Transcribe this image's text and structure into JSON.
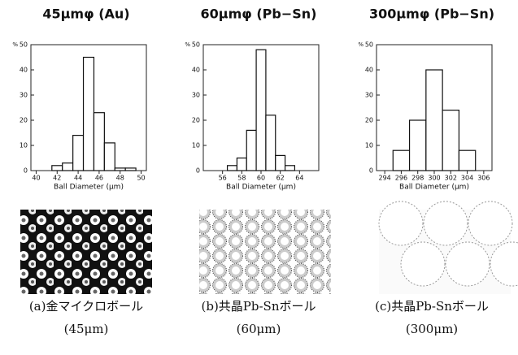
{
  "chart_data": [
    {
      "type": "histogram",
      "title": "45μmφ (Au)",
      "ylabel": "%",
      "xlabel": "Ball Diameter (μm)",
      "bins": [
        41.5,
        42.5,
        43.5,
        44.5,
        45.5,
        46.5,
        47.5,
        48.5,
        49.5
      ],
      "values": [
        2,
        3,
        14,
        45,
        23,
        11,
        1,
        1
      ],
      "xlim": [
        39.5,
        50.5
      ],
      "xticks": [
        40,
        42,
        44,
        46,
        48,
        50
      ],
      "ylim": [
        0,
        50
      ],
      "yticks": [
        0,
        10,
        20,
        30,
        40,
        50
      ],
      "color": "#ffffff",
      "caption": "(a)金マイクロボール",
      "caption_sub": "(45μm)"
    },
    {
      "type": "histogram",
      "title": "60μmφ (Pb−Sn)",
      "ylabel": "%",
      "xlabel": "Ball Diameter (μm)",
      "bins": [
        56.5,
        57.5,
        58.5,
        59.5,
        60.5,
        61.5,
        62.5,
        63.5
      ],
      "values": [
        2,
        5,
        16,
        48,
        22,
        6,
        2
      ],
      "xlim": [
        54,
        66
      ],
      "xticks": [
        56,
        58,
        60,
        62,
        64
      ],
      "ylim": [
        0,
        50
      ],
      "yticks": [
        0,
        10,
        20,
        30,
        40,
        50
      ],
      "color": "#ffffff",
      "caption": "(b)共晶Pb-Snボール",
      "caption_sub": "(60μm)"
    },
    {
      "type": "histogram",
      "title": "300μmφ (Pb−Sn)",
      "ylabel": "%",
      "xlabel": "Ball Diameter (μm)",
      "bins": [
        295,
        297,
        299,
        301,
        303,
        305
      ],
      "values": [
        8,
        20,
        40,
        24,
        8
      ],
      "xlim": [
        293,
        307
      ],
      "xticks": [
        294,
        296,
        298,
        300,
        302,
        304,
        306
      ],
      "ylim": [
        0,
        50
      ],
      "yticks": [
        0,
        10,
        20,
        30,
        40,
        50
      ],
      "color": "#ffffff",
      "caption": "(c)共晶Pb-Snボール",
      "caption_sub": "(300μm)"
    }
  ]
}
